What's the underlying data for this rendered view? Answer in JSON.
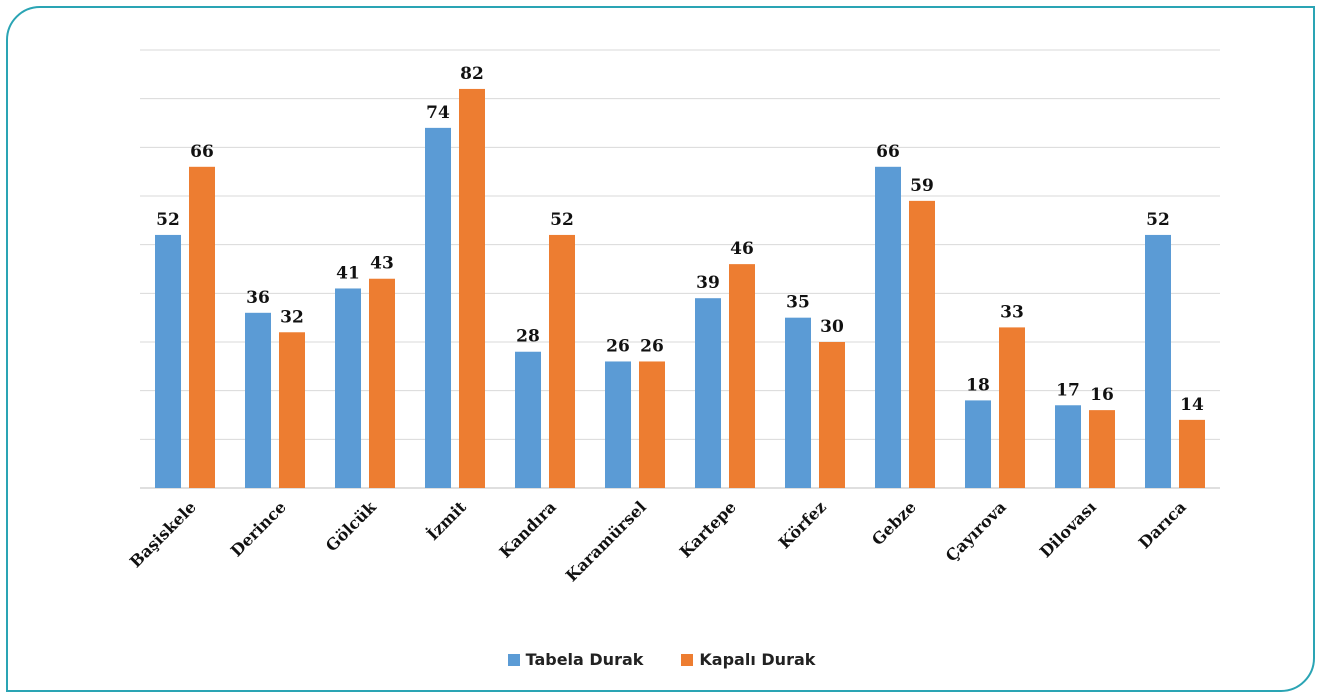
{
  "chart_data": {
    "type": "bar",
    "categories": [
      "Başiskele",
      "Derince",
      "Gölcük",
      "İzmit",
      "Kandıra",
      "Karamürsel",
      "Kartepe",
      "Körfez",
      "Gebze",
      "Çayırova",
      "Dilovası",
      "Darıca"
    ],
    "series": [
      {
        "name": "Tabela Durak",
        "color": "#5b9bd5",
        "values": [
          52,
          36,
          41,
          74,
          28,
          26,
          39,
          35,
          66,
          18,
          17,
          52
        ]
      },
      {
        "name": "Kapalı Durak",
        "color": "#ed7d31",
        "values": [
          66,
          32,
          43,
          82,
          52,
          26,
          46,
          30,
          59,
          33,
          16,
          14
        ]
      }
    ],
    "title": "",
    "xlabel": "",
    "ylabel": "",
    "ylim": [
      0,
      90
    ],
    "grid": true,
    "legend": "bottom"
  }
}
